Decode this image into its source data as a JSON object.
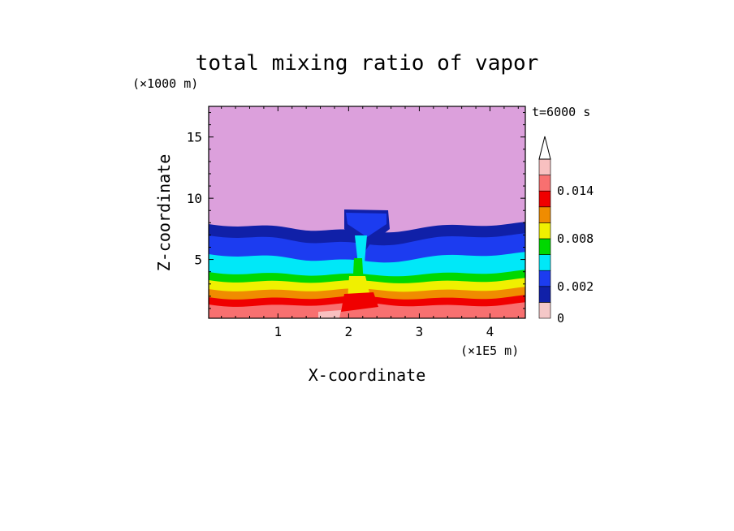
{
  "chart_data": {
    "type": "heatmap",
    "title": "total mixing ratio of vapor",
    "xlabel": "X-coordinate",
    "ylabel": "Z-coordinate",
    "x_unit": "(×1E5 m)",
    "y_unit": "(×1000 m)",
    "time_label": "t=6000 s",
    "xlim": [
      0.02,
      4.5
    ],
    "ylim": [
      0.2,
      17.5
    ],
    "x_ticks": [
      {
        "value": 1,
        "label": "1"
      },
      {
        "value": 2,
        "label": "2"
      },
      {
        "value": 3,
        "label": "3"
      },
      {
        "value": 4,
        "label": "4"
      }
    ],
    "y_ticks": [
      {
        "value": 5,
        "label": "5"
      },
      {
        "value": 10,
        "label": "10"
      },
      {
        "value": 15,
        "label": "15"
      }
    ],
    "colorbar": {
      "levels": [
        0,
        0.001,
        0.002,
        0.004,
        0.006,
        0.008,
        0.01,
        0.012,
        0.014,
        0.016
      ],
      "colors": [
        "#f5c8c8",
        "#1020a8",
        "#1c3cf0",
        "#00e8f8",
        "#00d800",
        "#f0f000",
        "#f08c00",
        "#f00000",
        "#f87070",
        "#f8c0c0"
      ],
      "labeled": [
        {
          "value": 0,
          "label": "0"
        },
        {
          "value": 0.002,
          "label": "0.002"
        },
        {
          "value": 0.008,
          "label": "0.008"
        },
        {
          "value": 0.014,
          "label": "0.014"
        }
      ],
      "extend": "max"
    },
    "background_color": "#dca0dc"
  }
}
